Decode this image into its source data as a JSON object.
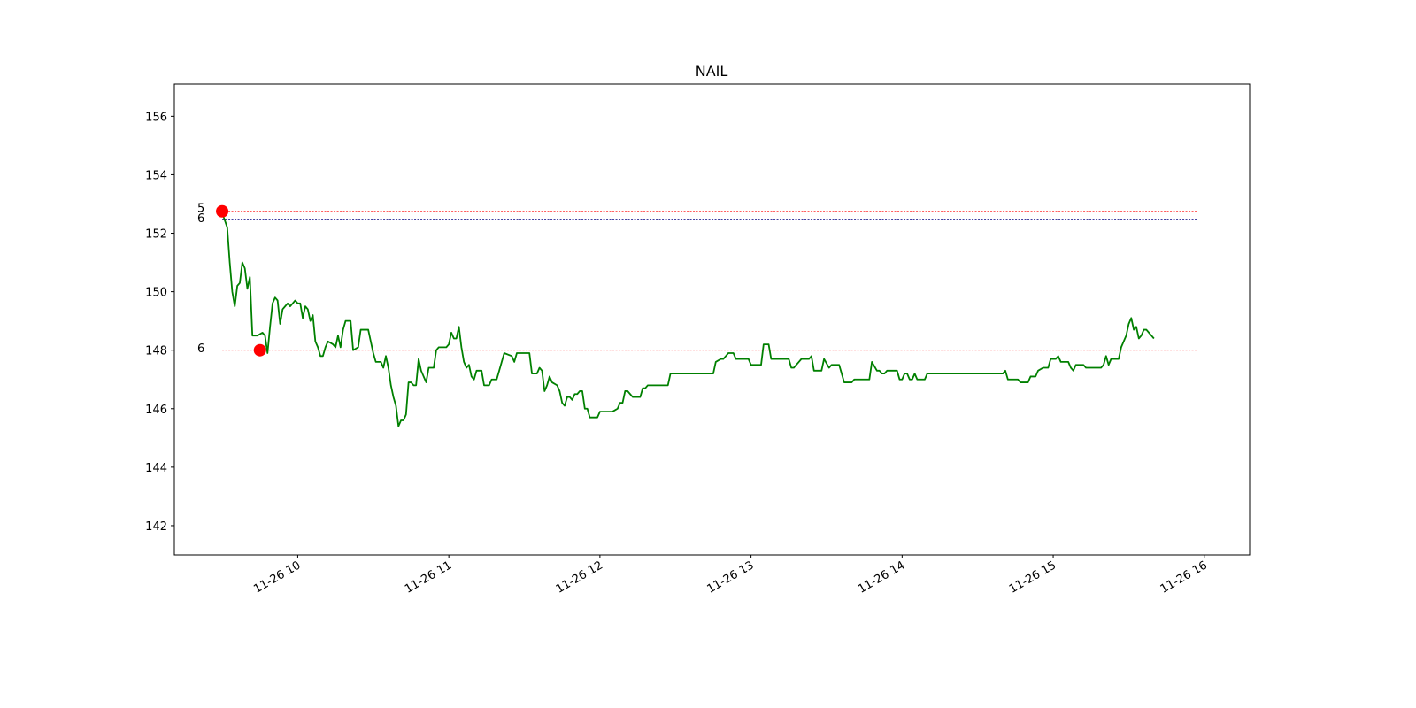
{
  "chart_data": {
    "type": "line",
    "title": "NAIL",
    "xlabel": "",
    "ylabel": "",
    "x_range": [
      "2023-11-26 09:11",
      "2023-11-26 16:18"
    ],
    "ylim": [
      141,
      157.1
    ],
    "y_ticks": [
      142,
      144,
      146,
      148,
      150,
      152,
      154,
      156
    ],
    "x_ticks": [
      {
        "t": "2023-11-26 10:00",
        "label": "11-26 10"
      },
      {
        "t": "2023-11-26 11:00",
        "label": "11-26 11"
      },
      {
        "t": "2023-11-26 12:00",
        "label": "11-26 12"
      },
      {
        "t": "2023-11-26 13:00",
        "label": "11-26 13"
      },
      {
        "t": "2023-11-26 14:00",
        "label": "11-26 14"
      },
      {
        "t": "2023-11-26 15:00",
        "label": "11-26 15"
      },
      {
        "t": "2023-11-26 16:00",
        "label": "11-26 16"
      }
    ],
    "grid": false,
    "series": [
      {
        "color": "#008000",
        "points": [
          [
            "09:30",
            152.7
          ],
          [
            "09:32",
            152.2
          ],
          [
            "09:33",
            151.0
          ],
          [
            "09:34",
            150.0
          ],
          [
            "09:35",
            149.5
          ],
          [
            "09:36",
            150.2
          ],
          [
            "09:37",
            150.3
          ],
          [
            "09:38",
            151.0
          ],
          [
            "09:39",
            150.8
          ],
          [
            "09:40",
            150.1
          ],
          [
            "09:41",
            150.5
          ],
          [
            "09:42",
            148.5
          ],
          [
            "09:44",
            148.5
          ],
          [
            "09:46",
            148.6
          ],
          [
            "09:47",
            148.5
          ],
          [
            "09:48",
            147.9
          ],
          [
            "09:49",
            148.8
          ],
          [
            "09:50",
            149.6
          ],
          [
            "09:51",
            149.8
          ],
          [
            "09:52",
            149.7
          ],
          [
            "09:53",
            148.9
          ],
          [
            "09:54",
            149.4
          ],
          [
            "09:55",
            149.5
          ],
          [
            "09:56",
            149.6
          ],
          [
            "09:57",
            149.5
          ],
          [
            "09:58",
            149.6
          ],
          [
            "09:59",
            149.7
          ],
          [
            "10:00",
            149.6
          ],
          [
            "10:01",
            149.6
          ],
          [
            "10:02",
            149.1
          ],
          [
            "10:03",
            149.5
          ],
          [
            "10:04",
            149.4
          ],
          [
            "10:05",
            149.0
          ],
          [
            "10:06",
            149.2
          ],
          [
            "10:07",
            148.3
          ],
          [
            "10:08",
            148.1
          ],
          [
            "10:09",
            147.8
          ],
          [
            "10:10",
            147.8
          ],
          [
            "10:11",
            148.1
          ],
          [
            "10:12",
            148.3
          ],
          [
            "10:14",
            148.2
          ],
          [
            "10:15",
            148.1
          ],
          [
            "10:16",
            148.5
          ],
          [
            "10:17",
            148.1
          ],
          [
            "10:18",
            148.7
          ],
          [
            "10:19",
            149.0
          ],
          [
            "10:21",
            149.0
          ],
          [
            "10:22",
            148.0
          ],
          [
            "10:24",
            148.1
          ],
          [
            "10:25",
            148.7
          ],
          [
            "10:28",
            148.7
          ],
          [
            "10:29",
            148.3
          ],
          [
            "10:30",
            147.9
          ],
          [
            "10:31",
            147.6
          ],
          [
            "10:33",
            147.6
          ],
          [
            "10:34",
            147.4
          ],
          [
            "10:35",
            147.8
          ],
          [
            "10:36",
            147.4
          ],
          [
            "10:37",
            146.8
          ],
          [
            "10:38",
            146.4
          ],
          [
            "10:39",
            146.1
          ],
          [
            "10:40",
            145.4
          ],
          [
            "10:41",
            145.6
          ],
          [
            "10:42",
            145.6
          ],
          [
            "10:43",
            145.8
          ],
          [
            "10:44",
            146.9
          ],
          [
            "10:45",
            146.9
          ],
          [
            "10:46",
            146.8
          ],
          [
            "10:47",
            146.8
          ],
          [
            "10:48",
            147.7
          ],
          [
            "10:49",
            147.3
          ],
          [
            "10:50",
            147.1
          ],
          [
            "10:51",
            146.9
          ],
          [
            "10:52",
            147.4
          ],
          [
            "10:54",
            147.4
          ],
          [
            "10:55",
            148.0
          ],
          [
            "10:56",
            148.1
          ],
          [
            "10:59",
            148.1
          ],
          [
            "11:00",
            148.2
          ],
          [
            "11:01",
            148.6
          ],
          [
            "11:02",
            148.4
          ],
          [
            "11:03",
            148.4
          ],
          [
            "11:04",
            148.8
          ],
          [
            "11:05",
            148.1
          ],
          [
            "11:06",
            147.6
          ],
          [
            "11:07",
            147.4
          ],
          [
            "11:08",
            147.5
          ],
          [
            "11:09",
            147.1
          ],
          [
            "11:10",
            147.0
          ],
          [
            "11:11",
            147.3
          ],
          [
            "11:13",
            147.3
          ],
          [
            "11:14",
            146.8
          ],
          [
            "11:16",
            146.8
          ],
          [
            "11:17",
            147.0
          ],
          [
            "11:19",
            147.0
          ],
          [
            "11:20",
            147.3
          ],
          [
            "11:21",
            147.6
          ],
          [
            "11:22",
            147.9
          ],
          [
            "11:25",
            147.8
          ],
          [
            "11:26",
            147.6
          ],
          [
            "11:27",
            147.9
          ],
          [
            "11:32",
            147.9
          ],
          [
            "11:33",
            147.2
          ],
          [
            "11:35",
            147.2
          ],
          [
            "11:36",
            147.4
          ],
          [
            "11:37",
            147.3
          ],
          [
            "11:38",
            146.6
          ],
          [
            "11:39",
            146.8
          ],
          [
            "11:40",
            147.1
          ],
          [
            "11:41",
            146.9
          ],
          [
            "11:43",
            146.8
          ],
          [
            "11:44",
            146.6
          ],
          [
            "11:45",
            146.2
          ],
          [
            "11:46",
            146.1
          ],
          [
            "11:47",
            146.4
          ],
          [
            "11:48",
            146.4
          ],
          [
            "11:49",
            146.3
          ],
          [
            "11:50",
            146.5
          ],
          [
            "11:51",
            146.5
          ],
          [
            "11:52",
            146.6
          ],
          [
            "11:53",
            146.6
          ],
          [
            "11:54",
            146.0
          ],
          [
            "11:55",
            146.0
          ],
          [
            "11:56",
            145.7
          ],
          [
            "11:57",
            145.7
          ],
          [
            "11:59",
            145.7
          ],
          [
            "12:00",
            145.9
          ],
          [
            "12:03",
            145.9
          ],
          [
            "12:04",
            145.9
          ],
          [
            "12:05",
            145.9
          ],
          [
            "12:07",
            146.0
          ],
          [
            "12:08",
            146.2
          ],
          [
            "12:09",
            146.2
          ],
          [
            "12:10",
            146.6
          ],
          [
            "12:11",
            146.6
          ],
          [
            "12:12",
            146.5
          ],
          [
            "12:13",
            146.4
          ],
          [
            "12:16",
            146.4
          ],
          [
            "12:17",
            146.7
          ],
          [
            "12:18",
            146.7
          ],
          [
            "12:19",
            146.8
          ],
          [
            "12:21",
            146.8
          ],
          [
            "12:22",
            146.8
          ],
          [
            "12:27",
            146.8
          ],
          [
            "12:28",
            147.2
          ],
          [
            "12:45",
            147.2
          ],
          [
            "12:46",
            147.6
          ],
          [
            "12:48",
            147.7
          ],
          [
            "12:49",
            147.7
          ],
          [
            "12:50",
            147.8
          ],
          [
            "12:51",
            147.9
          ],
          [
            "12:53",
            147.9
          ],
          [
            "12:54",
            147.7
          ],
          [
            "12:59",
            147.7
          ],
          [
            "13:00",
            147.5
          ],
          [
            "13:04",
            147.5
          ],
          [
            "13:05",
            148.2
          ],
          [
            "13:07",
            148.2
          ],
          [
            "13:08",
            147.7
          ],
          [
            "13:15",
            147.7
          ],
          [
            "13:16",
            147.4
          ],
          [
            "13:17",
            147.4
          ],
          [
            "13:18",
            147.5
          ],
          [
            "13:19",
            147.6
          ],
          [
            "13:20",
            147.7
          ],
          [
            "13:23",
            147.7
          ],
          [
            "13:24",
            147.8
          ],
          [
            "13:25",
            147.3
          ],
          [
            "13:28",
            147.3
          ],
          [
            "13:29",
            147.7
          ],
          [
            "13:31",
            147.4
          ],
          [
            "13:32",
            147.5
          ],
          [
            "13:35",
            147.5
          ],
          [
            "13:37",
            146.9
          ],
          [
            "13:40",
            146.9
          ],
          [
            "13:41",
            147.0
          ],
          [
            "13:47",
            147.0
          ],
          [
            "13:48",
            147.6
          ],
          [
            "13:50",
            147.3
          ],
          [
            "13:51",
            147.3
          ],
          [
            "13:52",
            147.2
          ],
          [
            "13:53",
            147.2
          ],
          [
            "13:54",
            147.3
          ],
          [
            "13:58",
            147.3
          ],
          [
            "13:59",
            147.0
          ],
          [
            "14:00",
            147.0
          ],
          [
            "14:01",
            147.2
          ],
          [
            "14:02",
            147.2
          ],
          [
            "14:03",
            147.0
          ],
          [
            "14:04",
            147.0
          ],
          [
            "14:05",
            147.2
          ],
          [
            "14:06",
            147.0
          ],
          [
            "14:09",
            147.0
          ],
          [
            "14:10",
            147.2
          ],
          [
            "14:40",
            147.2
          ],
          [
            "14:41",
            147.3
          ],
          [
            "14:42",
            147.0
          ],
          [
            "14:46",
            147.0
          ],
          [
            "14:47",
            146.9
          ],
          [
            "14:50",
            146.9
          ],
          [
            "14:51",
            147.1
          ],
          [
            "14:53",
            147.1
          ],
          [
            "14:54",
            147.3
          ],
          [
            "14:56",
            147.4
          ],
          [
            "14:58",
            147.4
          ],
          [
            "14:59",
            147.7
          ],
          [
            "15:01",
            147.7
          ],
          [
            "15:02",
            147.8
          ],
          [
            "15:03",
            147.6
          ],
          [
            "15:06",
            147.6
          ],
          [
            "15:07",
            147.4
          ],
          [
            "15:08",
            147.3
          ],
          [
            "15:09",
            147.5
          ],
          [
            "15:12",
            147.5
          ],
          [
            "15:13",
            147.4
          ],
          [
            "15:17",
            147.4
          ],
          [
            "15:18",
            147.4
          ],
          [
            "15:19",
            147.4
          ],
          [
            "15:20",
            147.5
          ],
          [
            "15:21",
            147.8
          ],
          [
            "15:22",
            147.5
          ],
          [
            "15:23",
            147.7
          ],
          [
            "15:26",
            147.7
          ],
          [
            "15:27",
            148.1
          ],
          [
            "15:28",
            148.3
          ],
          [
            "15:29",
            148.5
          ],
          [
            "15:30",
            148.9
          ],
          [
            "15:31",
            149.1
          ],
          [
            "15:32",
            148.7
          ],
          [
            "15:33",
            148.8
          ],
          [
            "15:34",
            148.4
          ],
          [
            "15:35",
            148.5
          ],
          [
            "15:36",
            148.7
          ],
          [
            "15:37",
            148.7
          ],
          [
            "15:38",
            148.6
          ],
          [
            "15:39",
            148.5
          ],
          [
            "15:40",
            148.4
          ]
        ]
      }
    ],
    "hlines": [
      {
        "y": 152.75,
        "color": "#ff0000",
        "start": "09:30",
        "end": "15:57"
      },
      {
        "y": 152.45,
        "color": "#000080",
        "start": "09:30",
        "end": "15:57"
      },
      {
        "y": 148.0,
        "color": "#ff0000",
        "start": "09:30",
        "end": "15:57"
      }
    ],
    "markers": [
      {
        "t": "09:30",
        "y": 152.75,
        "color": "#ff0000"
      },
      {
        "t": "09:45",
        "y": 148.0,
        "color": "#ff0000"
      }
    ],
    "annotations": [
      {
        "text": "5",
        "y": 152.85
      },
      {
        "text": "6",
        "y": 152.5
      },
      {
        "text": "6",
        "y": 148.05
      }
    ]
  }
}
